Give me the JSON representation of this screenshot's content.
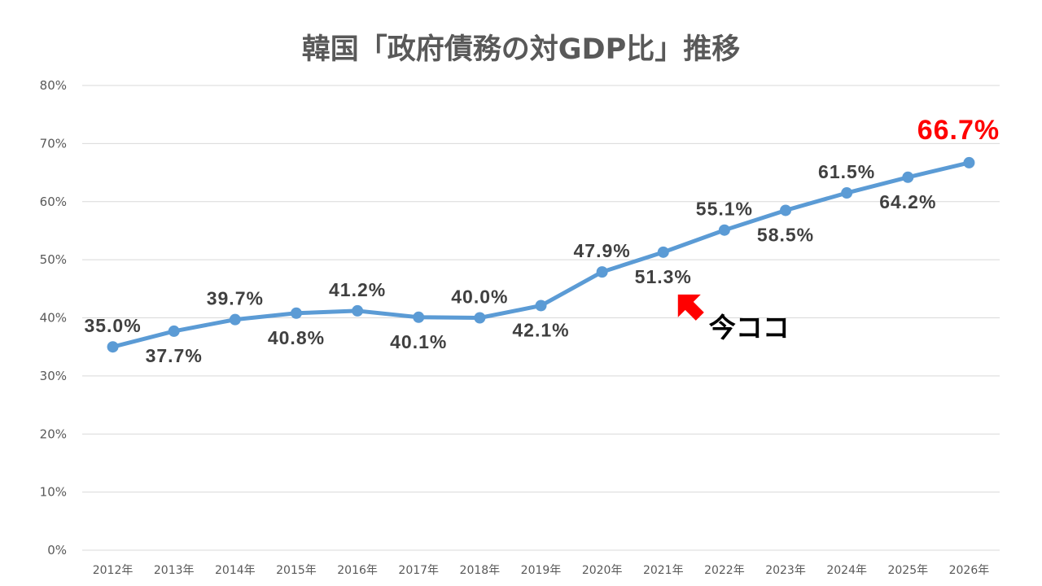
{
  "chart_data": {
    "type": "line",
    "title": "韓国「政府債務の対GDP比」推移",
    "xlabel": "",
    "ylabel": "",
    "categories": [
      "2012年",
      "2013年",
      "2014年",
      "2015年",
      "2016年",
      "2017年",
      "2018年",
      "2019年",
      "2020年",
      "2021年",
      "2022年",
      "2023年",
      "2024年",
      "2025年",
      "2026年"
    ],
    "series": [
      {
        "name": "政府債務の対GDP比",
        "values": [
          35.0,
          37.7,
          39.7,
          40.8,
          41.2,
          40.1,
          40.0,
          42.1,
          47.9,
          51.3,
          55.1,
          58.5,
          61.5,
          64.2,
          66.7
        ],
        "labels": [
          "35.0%",
          "37.7%",
          "39.7%",
          "40.8%",
          "41.2%",
          "40.1%",
          "40.0%",
          "42.1%",
          "47.9%",
          "51.3%",
          "55.1%",
          "58.5%",
          "61.5%",
          "64.2%",
          "66.7%"
        ],
        "label_positions": [
          "above",
          "below",
          "above",
          "below",
          "above",
          "below",
          "above",
          "below",
          "above",
          "below",
          "above",
          "below",
          "above",
          "below",
          "above"
        ],
        "highlight_index": 14,
        "color": "#5b9bd5"
      }
    ],
    "ylim": [
      0,
      80
    ],
    "yticks": [
      0,
      10,
      20,
      30,
      40,
      50,
      60,
      70,
      80
    ],
    "ytick_labels": [
      "0%",
      "10%",
      "20%",
      "30%",
      "40%",
      "50%",
      "60%",
      "70%",
      "80%"
    ],
    "grid": true,
    "legend": "none",
    "annotation": {
      "text": "今ココ",
      "points_to_index": 9,
      "arrow_color": "#ff0000"
    },
    "highlight_color": "#ff0000",
    "grid_color": "#d9d9d9"
  }
}
